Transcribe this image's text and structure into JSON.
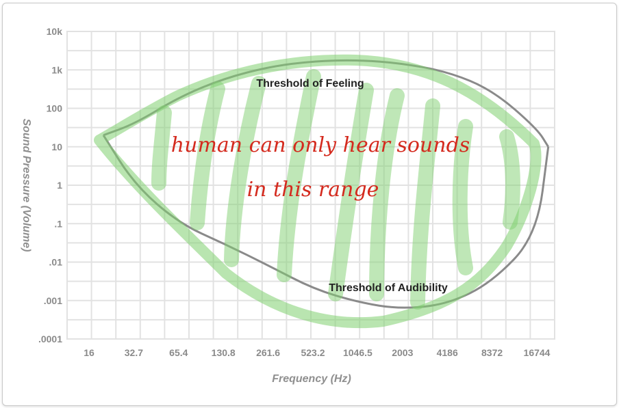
{
  "chart_data": {
    "type": "area",
    "title": "",
    "xlabel": "Frequency (Hz)",
    "ylabel": "Sound Pressure (Volume)",
    "x_scale": "log2",
    "y_scale": "log10",
    "x_ticks": [
      "16",
      "32.7",
      "65.4",
      "130.8",
      "261.6",
      "523.2",
      "1046.5",
      "2003",
      "4186",
      "8372",
      "16744"
    ],
    "y_ticks": [
      "10k",
      "1k",
      "100",
      "10",
      "1",
      ".1",
      ".01",
      ".001",
      ".0001"
    ],
    "ylim": [
      0.0001,
      10000
    ],
    "grid": true,
    "series": [
      {
        "name": "Threshold of Feeling",
        "x": [
          20,
          32.7,
          65.4,
          130.8,
          261.6,
          523.2,
          1046.5,
          2003,
          4186,
          8372,
          16744,
          20000
        ],
        "y": [
          20,
          40,
          200,
          600,
          1200,
          1700,
          1800,
          1500,
          900,
          300,
          30,
          10
        ]
      },
      {
        "name": "Threshold of Audibility",
        "x": [
          20,
          32.7,
          65.4,
          130.8,
          261.6,
          523.2,
          1046.5,
          2003,
          4186,
          8372,
          16744,
          20000
        ],
        "y": [
          20,
          1,
          0.1,
          0.03,
          0.008,
          0.002,
          0.0009,
          0.0006,
          0.0008,
          0.003,
          0.05,
          10
        ]
      }
    ],
    "annotations": [
      {
        "text": "Threshold of Feeling"
      },
      {
        "text": "Threshold of Audibility"
      }
    ],
    "handwritten_note": {
      "line1": "human can only hear sounds",
      "line2": "in this range",
      "color": "#d42a1e"
    },
    "highlight_color": "#7fcf6f"
  }
}
